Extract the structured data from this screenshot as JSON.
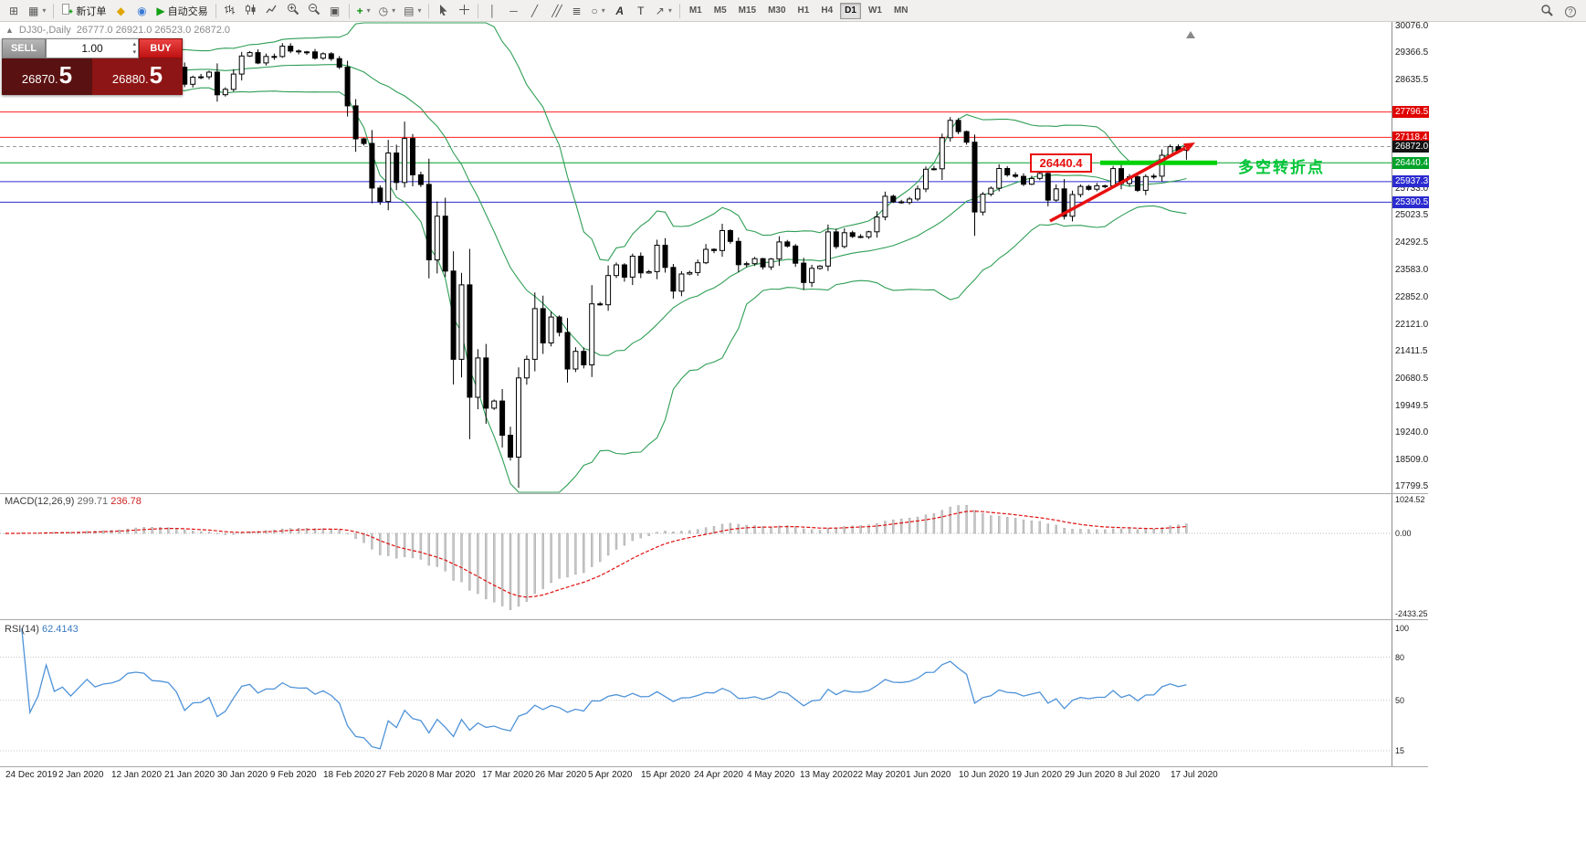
{
  "toolbar": {
    "items": [
      {
        "name": "new-chart"
      },
      {
        "name": "profiles",
        "dropdown": true
      },
      {
        "sep": true
      },
      {
        "name": "new-order",
        "label": "新订单"
      },
      {
        "name": "metaeditor"
      },
      {
        "name": "community"
      },
      {
        "name": "auto-trading",
        "label": "自动交易"
      },
      {
        "sep": true
      },
      {
        "name": "bar-chart"
      },
      {
        "name": "candle-chart"
      },
      {
        "name": "line-chart"
      },
      {
        "name": "zoom-in"
      },
      {
        "name": "zoom-out"
      },
      {
        "name": "tile-windows"
      },
      {
        "sep": true
      },
      {
        "name": "indicators",
        "dropdown": true
      },
      {
        "name": "periods",
        "dropdown": true
      },
      {
        "name": "templates",
        "dropdown": true
      },
      {
        "sep": true
      },
      {
        "name": "cursor"
      },
      {
        "name": "crosshair"
      },
      {
        "sep": true
      },
      {
        "name": "vertical-line"
      },
      {
        "name": "horizontal-line"
      },
      {
        "name": "trendline"
      },
      {
        "name": "equidistant-channel"
      },
      {
        "name": "fibonacci"
      },
      {
        "name": "shapes",
        "dropdown": true
      },
      {
        "name": "text"
      },
      {
        "name": "label"
      },
      {
        "name": "arrows",
        "dropdown": true
      },
      {
        "sep": true
      }
    ],
    "timeframes": [
      "M1",
      "M5",
      "M15",
      "M30",
      "H1",
      "H4",
      "D1",
      "W1",
      "MN"
    ],
    "active_timeframe": "D1",
    "right_items": [
      {
        "name": "search"
      },
      {
        "name": "help"
      }
    ]
  },
  "chart": {
    "symbol_title": "DJ30-,Daily",
    "ohlc_text": "26777.0 26921.0 26523.0 26872.0",
    "trade_panel": {
      "sell_label": "SELL",
      "buy_label": "BUY",
      "volume": "1.00",
      "sell_price_small": "26870.",
      "sell_price_big": "5",
      "buy_price_small": "26880.",
      "buy_price_big": "5"
    },
    "price_ticks": [
      "30076.0",
      "29366.5",
      "28635.5",
      "25733.0",
      "25023.5",
      "24292.5",
      "23583.0",
      "22852.0",
      "22121.0",
      "21411.5",
      "20680.5",
      "19949.5",
      "19240.0",
      "18509.0",
      "17799.5"
    ],
    "price_badges": [
      {
        "label": "27796.5",
        "bg": "#e00000",
        "fg": "#ffffff"
      },
      {
        "label": "27118.4",
        "bg": "#e00000",
        "fg": "#ffffff"
      },
      {
        "label": "26872.0",
        "bg": "#141414",
        "fg": "#ffffff"
      },
      {
        "label": "26440.4",
        "bg": "#00a22a",
        "fg": "#ffffff"
      },
      {
        "label": "25937.3",
        "bg": "#2b2bd0",
        "fg": "#ffffff"
      },
      {
        "label": "25390.5",
        "bg": "#2b2bd0",
        "fg": "#ffffff"
      }
    ],
    "lines": [
      {
        "price": 27796.5,
        "color": "#ff1f1f",
        "width": 1
      },
      {
        "price": 27118.4,
        "color": "#ff1f1f",
        "width": 1
      },
      {
        "price": 26872.0,
        "color": "#9a9a9a",
        "width": 1,
        "dash": "4,3"
      },
      {
        "price": 26440.4,
        "color": "#00a22a",
        "width": 1
      },
      {
        "price": 25937.3,
        "color": "#2b2bd0",
        "width": 1
      },
      {
        "price": 25390.5,
        "color": "#2b2bd0",
        "width": 1
      }
    ],
    "dates": [
      "24 Dec 2019",
      "2 Jan 2020",
      "12 Jan 2020",
      "21 Jan 2020",
      "30 Jan 2020",
      "9 Feb 2020",
      "18 Feb 2020",
      "27 Feb 2020",
      "8 Mar 2020",
      "17 Mar 2020",
      "26 Mar 2020",
      "5 Apr 2020",
      "15 Apr 2020",
      "24 Apr 2020",
      "4 May 2020",
      "13 May 2020",
      "22 May 2020",
      "1 Jun 2020",
      "10 Jun 2020",
      "19 Jun 2020",
      "29 Jun 2020",
      "8 Jul 2020",
      "17 Jul 2020"
    ],
    "annotations": {
      "level_box": "26440.4",
      "turning_point": "多空转折点"
    }
  },
  "indicators": {
    "macd": {
      "label": "MACD(12,26,9)",
      "value_main": "299.71",
      "value_signal": "236.78",
      "axis": [
        "1024.52",
        "0.00",
        "-2433.25"
      ]
    },
    "rsi": {
      "label": "RSI(14)",
      "value": "62.4143",
      "axis": [
        "100",
        "80",
        "50",
        "15"
      ]
    }
  },
  "chart_data": {
    "type": "candlestick",
    "symbol": "DJ30",
    "period": "Daily",
    "visible_range": {
      "first_date": "24 Dec 2019",
      "last_date": "17 Jul 2020"
    },
    "price_axis_range": [
      17799.5,
      30076.0
    ],
    "first_open": 28550,
    "closes": [
      28515,
      28621,
      28645,
      28462,
      28538,
      28868,
      28634,
      28703,
      28583,
      28745,
      28956,
      28823,
      28907,
      28939,
      29030,
      29297,
      29348,
      29330,
      29196,
      29186,
      29160,
      28989,
      28535,
      28722,
      28734,
      28859,
      28256,
      28399,
      28807,
      29290,
      29379,
      29102,
      29276,
      29276,
      29551,
      29423,
      29398,
      29400,
      29232,
      29348,
      29219,
      28992,
      27960,
      27081,
      26957,
      25766,
      25409,
      26703,
      25917,
      27090,
      26121,
      25864,
      23851,
      25018,
      23553,
      21200,
      23185,
      20188,
      21237,
      19898,
      20087,
      19173,
      18591,
      20704,
      21200,
      22552,
      21636,
      22327,
      21917,
      20943,
      21413,
      21052,
      22679,
      22653,
      23433,
      23719,
      23390,
      23949,
      23504,
      23537,
      24242,
      23650,
      23018,
      23475,
      23515,
      23775,
      24133,
      24101,
      24633,
      24345,
      23723,
      23749,
      23883,
      23664,
      23875,
      24331,
      24221,
      23764,
      23247,
      23625,
      23685,
      24597,
      24206,
      24575,
      24474,
      24465,
      24600,
      24995,
      25548,
      25400,
      25383,
      25475,
      25742,
      26269,
      26281,
      27110,
      27572,
      27272,
      26989,
      25128,
      25605,
      25763,
      26289,
      26119,
      26080,
      25871,
      26024,
      26156,
      25445,
      25745,
      25015,
      25595,
      25812,
      25734,
      25827,
      25827,
      26287,
      25890,
      26067,
      25706,
      26075,
      26085,
      26642,
      26870,
      26734,
      26872
    ],
    "last_ohlc": [
      26777.0,
      26921.0,
      26523.0,
      26872.0
    ],
    "overlays": [
      {
        "name": "Bollinger Bands",
        "period": 20,
        "deviation": 2
      }
    ],
    "sub_indicators": [
      {
        "name": "MACD",
        "params": [
          12,
          26,
          9
        ],
        "current": [
          299.71,
          236.78
        ],
        "axis_range": [
          -2433.25,
          1024.52
        ]
      },
      {
        "name": "RSI",
        "params": [
          14
        ],
        "current": 62.4143,
        "axis_levels": [
          100,
          80,
          50,
          15
        ]
      }
    ]
  },
  "colors": {
    "line_red": "#ff1f1f",
    "line_green": "#00a22a",
    "line_blue": "#2b2bd0",
    "current_price_line": "#9a9a9a",
    "highlight_green": "#00d20a",
    "arrow_red": "#e81010",
    "bollinger": "#2f9e55",
    "candle_up": "#ffffff",
    "candle_down": "#000000",
    "macd_hist": "#c6c6c6",
    "macd_signal": "#e01010",
    "rsi_line": "#4f93d8"
  }
}
